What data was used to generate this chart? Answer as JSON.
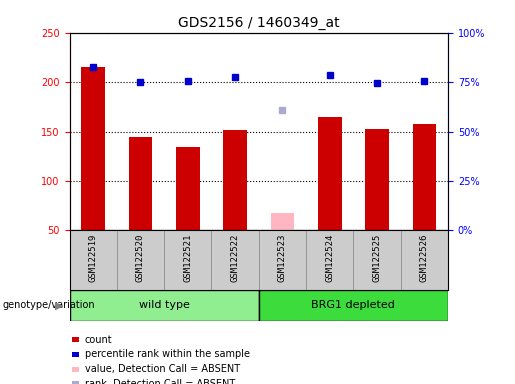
{
  "title": "GDS2156 / 1460349_at",
  "samples": [
    "GSM122519",
    "GSM122520",
    "GSM122521",
    "GSM122522",
    "GSM122523",
    "GSM122524",
    "GSM122525",
    "GSM122526"
  ],
  "count_values": [
    215,
    144,
    134,
    152,
    null,
    165,
    153,
    158
  ],
  "count_absent": [
    null,
    null,
    null,
    null,
    68,
    null,
    null,
    null
  ],
  "rank_values": [
    215,
    200,
    201,
    205,
    null,
    207,
    199,
    201
  ],
  "rank_absent": [
    null,
    null,
    null,
    null,
    172,
    null,
    null,
    null
  ],
  "ylim_left": [
    50,
    250
  ],
  "ylim_right": [
    0,
    100
  ],
  "yticks_left": [
    50,
    100,
    150,
    200,
    250
  ],
  "yticks_right": [
    0,
    25,
    50,
    75,
    100
  ],
  "ytick_labels_right": [
    "0%",
    "25%",
    "50%",
    "75%",
    "100%"
  ],
  "groups": [
    {
      "label": "wild type",
      "start": 0,
      "end": 3,
      "color": "#90EE90"
    },
    {
      "label": "BRG1 depleted",
      "start": 4,
      "end": 7,
      "color": "#3DDC3D"
    }
  ],
  "group_label": "genotype/variation",
  "bar_color": "#CC0000",
  "bar_absent_color": "#FFB6C1",
  "rank_color": "#0000CC",
  "rank_absent_color": "#AAAACC",
  "bg_color": "#CCCCCC",
  "plot_bg": "#FFFFFF",
  "legend_items": [
    {
      "label": "count",
      "color": "#CC0000"
    },
    {
      "label": "percentile rank within the sample",
      "color": "#0000CC"
    },
    {
      "label": "value, Detection Call = ABSENT",
      "color": "#FFB6C1"
    },
    {
      "label": "rank, Detection Call = ABSENT",
      "color": "#AAAACC"
    }
  ]
}
